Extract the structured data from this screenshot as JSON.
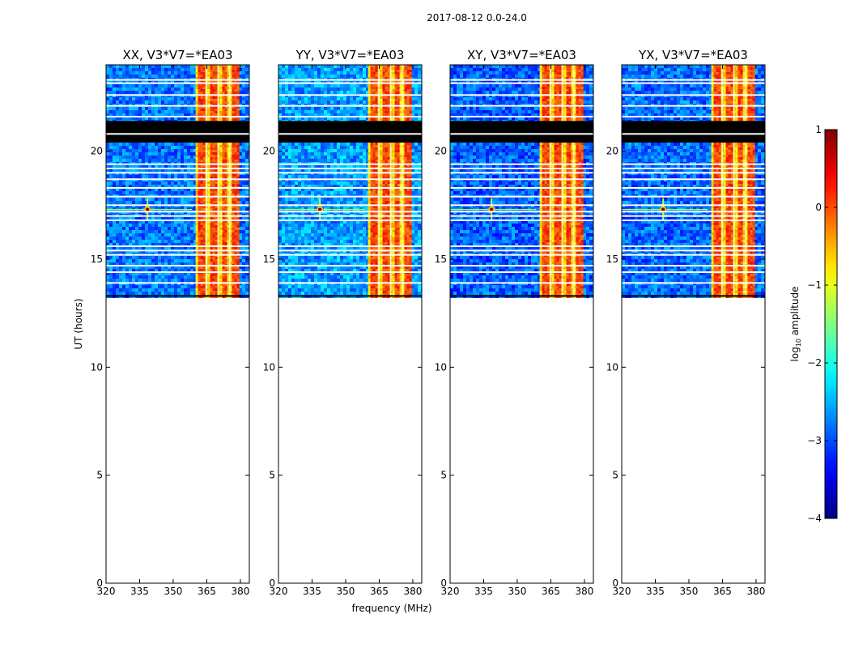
{
  "chart_data": {
    "type": "heatmap",
    "suptitle": "2017-08-12 0.0-24.0",
    "xlabel": "frequency (MHz)",
    "ylabel": "UT (hours)",
    "xlim": [
      320,
      384
    ],
    "ylim": [
      0,
      24
    ],
    "xticks": [
      320,
      335,
      350,
      365,
      380
    ],
    "yticks": [
      0,
      5,
      10,
      15,
      20
    ],
    "data_time_range_hours": [
      13.3,
      24.0
    ],
    "missing_time_block_hours": [
      20.4,
      21.4
    ],
    "flagged_time_rows_hours": [
      23.15,
      23.3,
      22.6,
      22.1,
      21.6,
      20.5,
      19.4,
      19.2,
      19.0,
      18.7,
      18.3,
      17.9,
      17.5,
      17.2,
      17.0,
      16.8,
      15.6,
      15.4,
      15.2,
      14.7,
      14.4,
      13.9
    ],
    "rfi_band_mhz": [
      360,
      379
    ],
    "rfi_point_source": {
      "freq_mhz": 338.5,
      "ut_hours": 17.3
    },
    "panels": [
      {
        "title": "XX, V3*V7=*EA03",
        "background_log_amp": -2.8
      },
      {
        "title": "YY, V3*V7=*EA03",
        "background_log_amp": -2.6
      },
      {
        "title": "XY, V3*V7=*EA03",
        "background_log_amp": -2.9
      },
      {
        "title": "YX, V3*V7=*EA03",
        "background_log_amp": -2.85
      }
    ],
    "colorbar": {
      "label": "log",
      "label_sub": "10",
      "label_rest": " amplitude",
      "range": [
        -4,
        1
      ],
      "ticks": [
        1,
        0,
        -1,
        -2,
        -3,
        -4
      ],
      "colormap": "jet"
    }
  }
}
